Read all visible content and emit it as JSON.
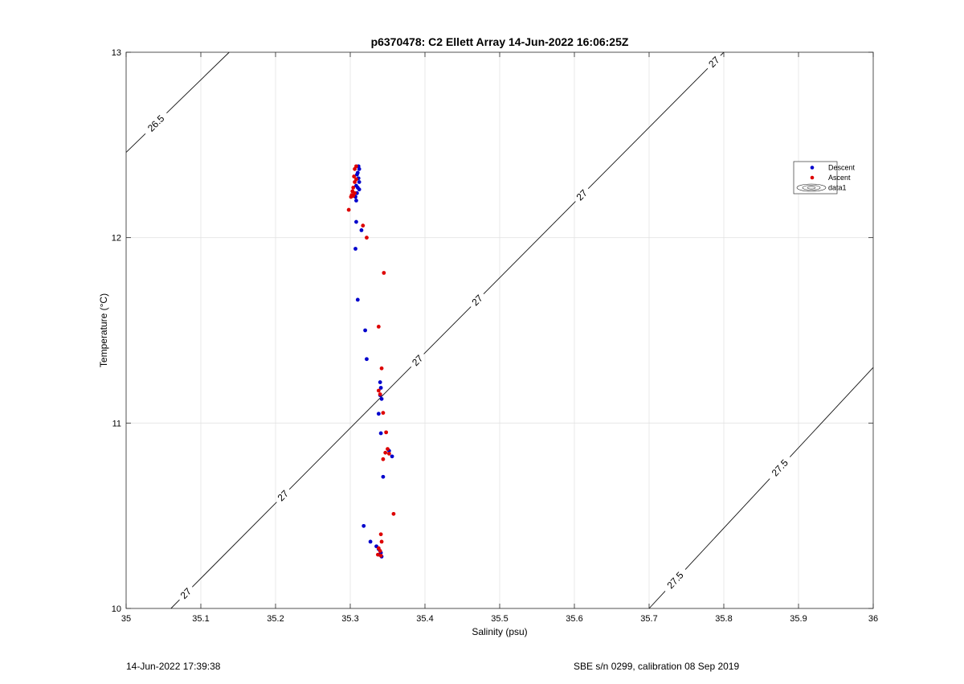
{
  "chart_data": {
    "type": "scatter",
    "title": "p6370478: C2 Ellett Array 14-Jun-2022 16:06:25Z",
    "xlabel": "Salinity (psu)",
    "ylabel": "Temperature (°C)",
    "xlim": [
      35,
      36
    ],
    "ylim": [
      10,
      13
    ],
    "xticks": [
      "35",
      "35.1",
      "35.2",
      "35.3",
      "35.4",
      "35.5",
      "35.6",
      "35.7",
      "35.8",
      "35.9",
      "36"
    ],
    "yticks": [
      "10",
      "11",
      "12",
      "13"
    ],
    "grid": true,
    "legend_position": "top-right",
    "series": [
      {
        "name": "Descent",
        "color": "#0000cc",
        "points": [
          [
            35.311,
            12.385
          ],
          [
            35.312,
            12.37
          ],
          [
            35.31,
            12.35
          ],
          [
            35.309,
            12.34
          ],
          [
            35.311,
            12.32
          ],
          [
            35.312,
            12.3
          ],
          [
            35.308,
            12.28
          ],
          [
            35.31,
            12.27
          ],
          [
            35.312,
            12.26
          ],
          [
            35.309,
            12.24
          ],
          [
            35.307,
            12.22
          ],
          [
            35.308,
            12.2
          ],
          [
            35.308,
            12.085
          ],
          [
            35.315,
            12.04
          ],
          [
            35.307,
            11.94
          ],
          [
            35.31,
            11.665
          ],
          [
            35.32,
            11.5
          ],
          [
            35.322,
            11.345
          ],
          [
            35.34,
            11.22
          ],
          [
            35.341,
            11.19
          ],
          [
            35.34,
            11.15
          ],
          [
            35.342,
            11.13
          ],
          [
            35.338,
            11.05
          ],
          [
            35.341,
            10.945
          ],
          [
            35.352,
            10.85
          ],
          [
            35.356,
            10.82
          ],
          [
            35.344,
            10.71
          ],
          [
            35.318,
            10.445
          ],
          [
            35.327,
            10.36
          ],
          [
            35.335,
            10.335
          ],
          [
            35.338,
            10.32
          ],
          [
            35.341,
            10.3
          ],
          [
            35.339,
            10.29
          ],
          [
            35.342,
            10.28
          ]
        ]
      },
      {
        "name": "Ascent",
        "color": "#dd0000",
        "points": [
          [
            35.308,
            12.385
          ],
          [
            35.306,
            12.37
          ],
          [
            35.305,
            12.33
          ],
          [
            35.308,
            12.315
          ],
          [
            35.306,
            12.3
          ],
          [
            35.304,
            12.27
          ],
          [
            35.303,
            12.25
          ],
          [
            35.306,
            12.24
          ],
          [
            35.302,
            12.23
          ],
          [
            35.304,
            12.225
          ],
          [
            35.301,
            12.22
          ],
          [
            35.298,
            12.15
          ],
          [
            35.317,
            12.065
          ],
          [
            35.322,
            12.0
          ],
          [
            35.345,
            11.81
          ],
          [
            35.338,
            11.52
          ],
          [
            35.342,
            11.295
          ],
          [
            35.338,
            11.175
          ],
          [
            35.34,
            11.155
          ],
          [
            35.344,
            11.055
          ],
          [
            35.348,
            10.95
          ],
          [
            35.35,
            10.86
          ],
          [
            35.347,
            10.84
          ],
          [
            35.352,
            10.835
          ],
          [
            35.344,
            10.805
          ],
          [
            35.358,
            10.51
          ],
          [
            35.341,
            10.4
          ],
          [
            35.342,
            10.36
          ],
          [
            35.338,
            10.325
          ],
          [
            35.34,
            10.31
          ],
          [
            35.337,
            10.29
          ],
          [
            35.341,
            10.285
          ]
        ]
      }
    ],
    "contours": [
      {
        "label": "26.5",
        "p1": [
          35.0,
          12.46
        ],
        "p2": [
          35.138,
          13.0
        ],
        "labels_at": [
          35.04
        ]
      },
      {
        "label": "27",
        "p1": [
          35.06,
          10.0
        ],
        "p2": [
          35.8,
          13.0
        ],
        "labels_at": [
          35.08,
          35.21,
          35.39,
          35.47,
          35.61,
          35.787
        ]
      },
      {
        "label": "27.5",
        "p1": [
          35.7,
          10.0
        ],
        "p2": [
          36.0,
          11.3
        ],
        "labels_at": [
          35.735,
          35.875
        ]
      }
    ],
    "legend": {
      "entries": [
        "Descent",
        "Ascent",
        "data1"
      ]
    }
  },
  "footer": {
    "left": "14-Jun-2022 17:39:38",
    "right": "SBE s/n 0299, calibration 08 Sep 2019"
  }
}
